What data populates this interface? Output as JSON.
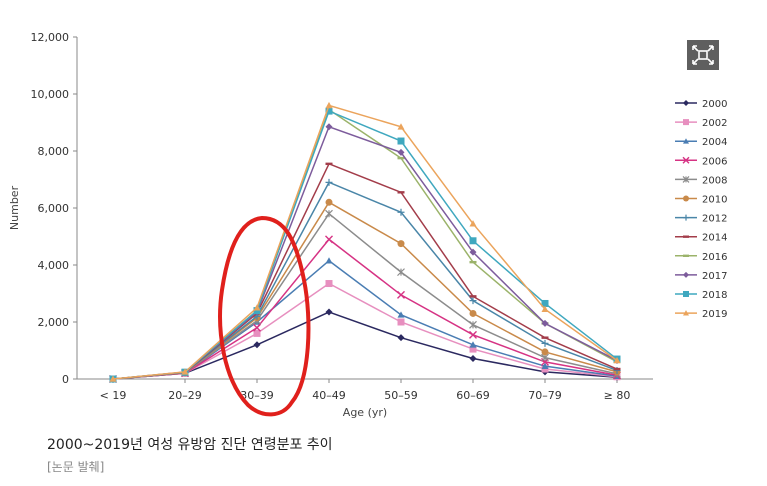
{
  "chart_data": {
    "type": "line",
    "xlabel": "Age (yr)",
    "ylabel": "Number",
    "categories": [
      "< 19",
      "20–29",
      "30–39",
      "40–49",
      "50–59",
      "60–69",
      "70–79",
      "≥ 80"
    ],
    "ylim": [
      0,
      12000
    ],
    "yticks": [
      0,
      2000,
      4000,
      6000,
      8000,
      10000,
      12000
    ],
    "ytick_labels": [
      "0",
      "2,000",
      "4,000",
      "6,000",
      "8,000",
      "10,000",
      "12,000"
    ],
    "grid": false,
    "legend_position": "right",
    "series": [
      {
        "name": "2000",
        "color": "#2b2960",
        "marker": "diamond",
        "values": [
          0,
          200,
          1200,
          2350,
          1450,
          720,
          250,
          60
        ]
      },
      {
        "name": "2002",
        "color": "#e78fbf",
        "marker": "square",
        "values": [
          0,
          200,
          1600,
          3350,
          2000,
          1050,
          350,
          80
        ]
      },
      {
        "name": "2004",
        "color": "#4a7db3",
        "marker": "triangle",
        "values": [
          0,
          200,
          2000,
          4150,
          2250,
          1200,
          450,
          100
        ]
      },
      {
        "name": "2006",
        "color": "#d63384",
        "marker": "x",
        "values": [
          0,
          200,
          1800,
          4900,
          2950,
          1550,
          600,
          130
        ]
      },
      {
        "name": "2008",
        "color": "#8c8c8c",
        "marker": "asterisk",
        "values": [
          0,
          220,
          2050,
          5800,
          3750,
          1900,
          750,
          180
        ]
      },
      {
        "name": "2010",
        "color": "#c98a4a",
        "marker": "circle",
        "values": [
          0,
          220,
          2150,
          6200,
          4750,
          2300,
          950,
          250
        ]
      },
      {
        "name": "2012",
        "color": "#4a86a8",
        "marker": "plus",
        "values": [
          0,
          230,
          2200,
          6900,
          5850,
          2750,
          1250,
          300
        ]
      },
      {
        "name": "2014",
        "color": "#a33d4a",
        "marker": "dash",
        "values": [
          0,
          230,
          2300,
          7550,
          6550,
          2900,
          1450,
          350
        ]
      },
      {
        "name": "2016",
        "color": "#9bb36a",
        "marker": "dash",
        "values": [
          0,
          240,
          2400,
          9450,
          7750,
          4100,
          1950,
          600
        ]
      },
      {
        "name": "2017",
        "color": "#7d5c9c",
        "marker": "diamond",
        "values": [
          0,
          240,
          2350,
          8850,
          7950,
          4450,
          1950,
          650
        ]
      },
      {
        "name": "2018",
        "color": "#3fa8bf",
        "marker": "square",
        "values": [
          0,
          240,
          2400,
          9400,
          8350,
          4850,
          2650,
          700
        ]
      },
      {
        "name": "2019",
        "color": "#eba45c",
        "marker": "triangle",
        "values": [
          0,
          250,
          2500,
          9600,
          8850,
          5450,
          2450,
          650
        ]
      }
    ],
    "annotation": {
      "shape": "hand-drawn ellipse",
      "color": "#e0201c",
      "target_category": "30–39"
    }
  },
  "caption": "2000~2019년 여성 유방암 진단 연령분포 추이",
  "source": "[논문 발췌]",
  "expand_icon": "expand-icon"
}
